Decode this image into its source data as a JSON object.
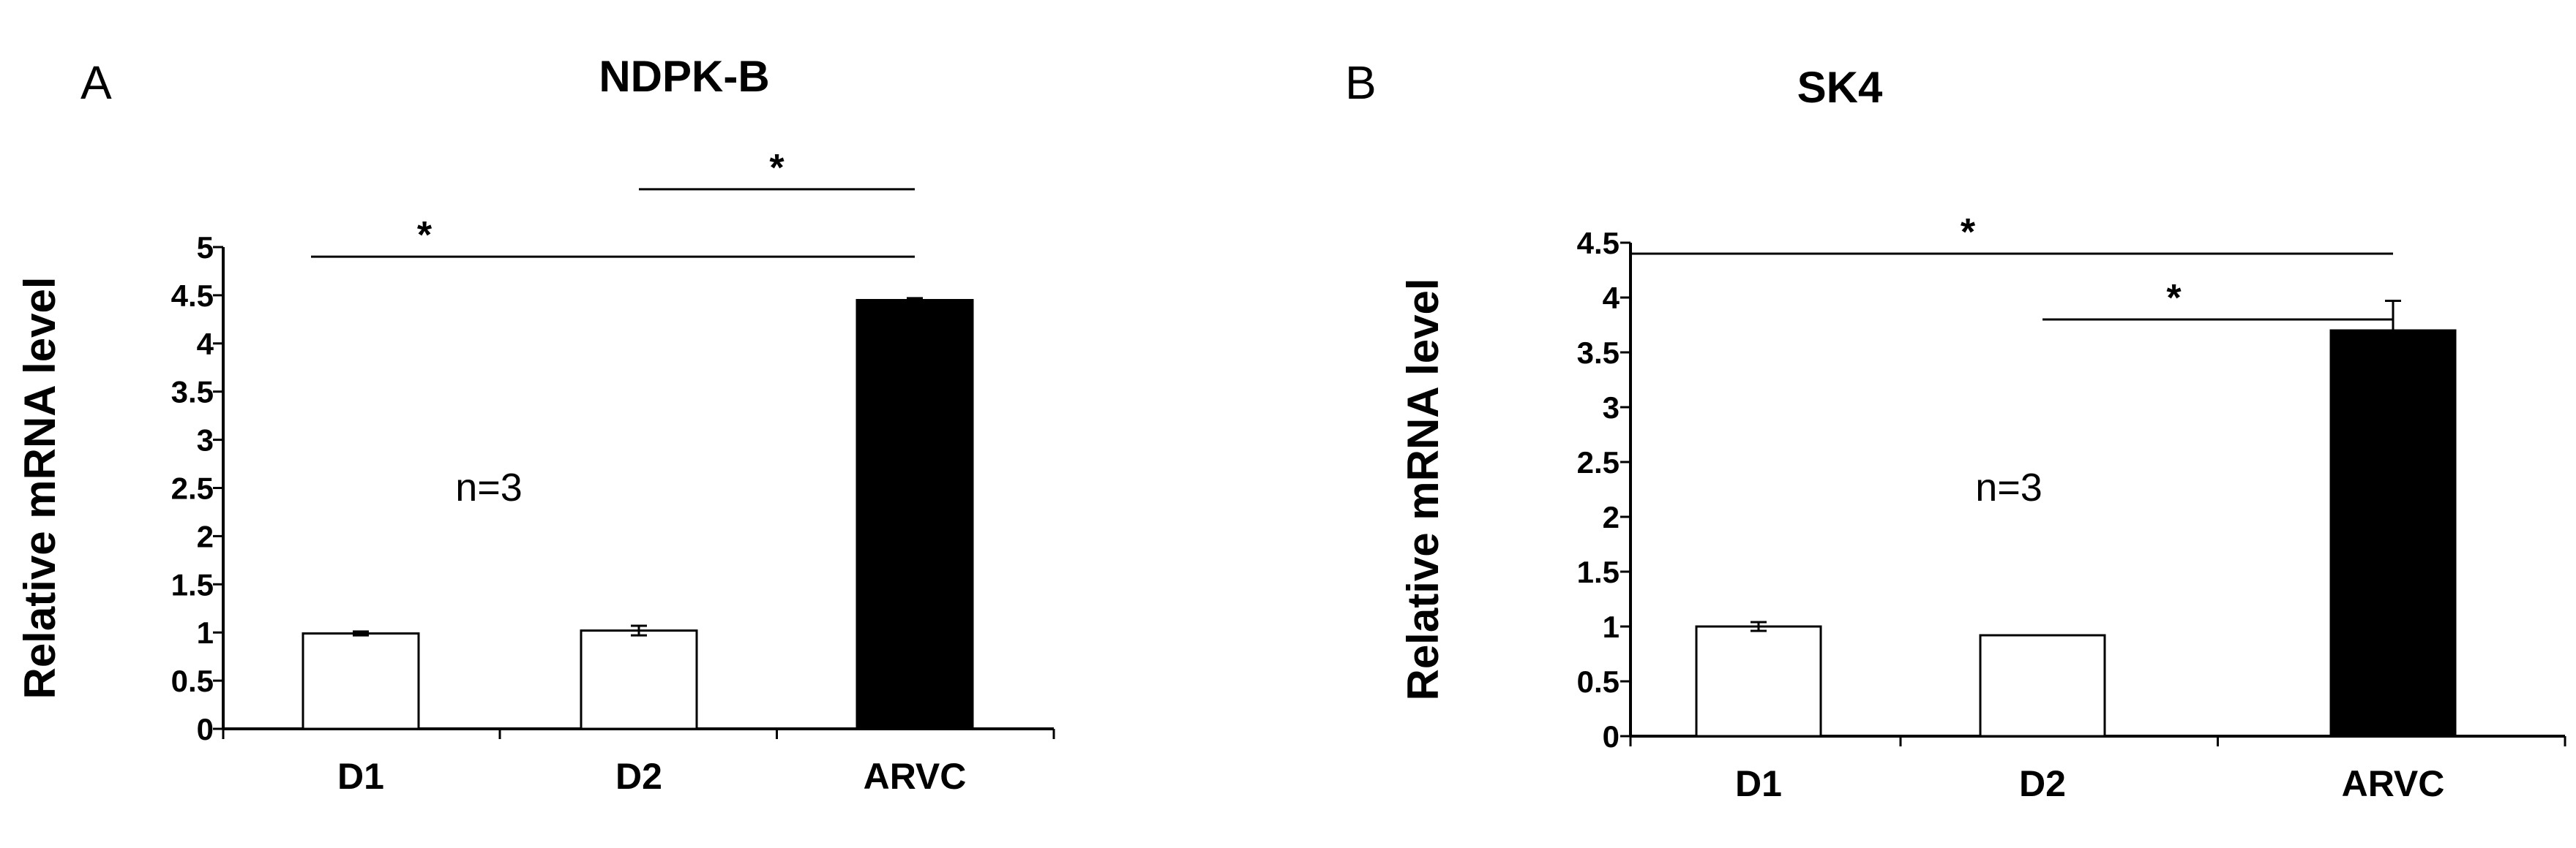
{
  "chart_data": [
    {
      "type": "bar",
      "panel": "A",
      "title": "NDPK-B",
      "ylabel": "Relative mRNA level",
      "xlabel": "",
      "categories": [
        "D1",
        "D2",
        "ARVC"
      ],
      "values": [
        0.99,
        1.02,
        4.45
      ],
      "errors": [
        0.02,
        0.05,
        0.02
      ],
      "bar_colors": [
        "#ffffff",
        "#ffffff",
        "#000000"
      ],
      "ylim": [
        0,
        5
      ],
      "yticks": [
        "0",
        "0.5",
        "1",
        "1.5",
        "2",
        "2.5",
        "3",
        "3.5",
        "4",
        "4.5",
        "5"
      ],
      "annotation": "n=3",
      "significance": [
        {
          "from": "D1",
          "to": "ARVC",
          "label": "*",
          "y": 4.9
        },
        {
          "from": "D2",
          "to": "ARVC",
          "label": "*",
          "y": 5.6
        }
      ],
      "grid": false,
      "legend": "none"
    },
    {
      "type": "bar",
      "panel": "B",
      "title": "SK4",
      "ylabel": "Relative mRNA level",
      "xlabel": "",
      "categories": [
        "D1",
        "D2",
        "ARVC"
      ],
      "values": [
        1.0,
        0.92,
        3.7
      ],
      "errors": [
        0.04,
        0.0,
        0.27
      ],
      "bar_colors": [
        "#ffffff",
        "#ffffff",
        "#000000"
      ],
      "ylim": [
        0,
        4.5
      ],
      "yticks": [
        "0",
        "0.5",
        "1",
        "1.5",
        "2",
        "2.5",
        "3",
        "3.5",
        "4",
        "4.5"
      ],
      "annotation": "n=3",
      "significance": [
        {
          "from": "D1",
          "to": "ARVC",
          "label": "*",
          "y": 4.4
        },
        {
          "from": "D2",
          "to": "ARVC",
          "label": "*",
          "y": 3.8
        }
      ],
      "grid": false,
      "legend": "none"
    }
  ]
}
